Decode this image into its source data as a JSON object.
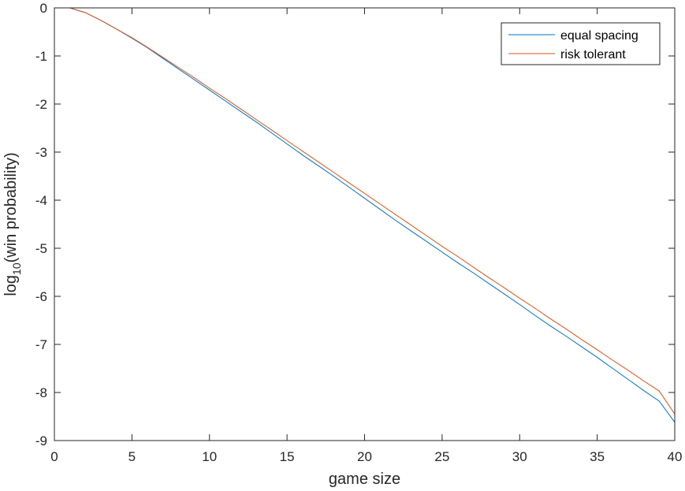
{
  "chart_data": {
    "type": "line",
    "title": "",
    "xlabel": "game size",
    "ylabel_prefix": "log",
    "ylabel_subscript": "10",
    "ylabel_suffix": "(win probability)",
    "xlim": [
      0,
      40
    ],
    "ylim": [
      -9,
      0
    ],
    "xticks": [
      0,
      5,
      10,
      15,
      20,
      25,
      30,
      35,
      40
    ],
    "yticks": [
      0,
      -1,
      -2,
      -3,
      -4,
      -5,
      -6,
      -7,
      -8,
      -9
    ],
    "grid": false,
    "legend_position": "top-right",
    "x": [
      1,
      2,
      3,
      4,
      5,
      6,
      7,
      8,
      9,
      10,
      11,
      12,
      13,
      14,
      15,
      16,
      17,
      18,
      19,
      20,
      21,
      22,
      23,
      24,
      25,
      26,
      27,
      28,
      29,
      30,
      31,
      32,
      33,
      34,
      35,
      36,
      37,
      38,
      39,
      40
    ],
    "series": [
      {
        "name": "equal spacing",
        "color": "#0072BD",
        "values": [
          0,
          -0.1,
          -0.26,
          -0.44,
          -0.63,
          -0.83,
          -1.05,
          -1.27,
          -1.49,
          -1.71,
          -1.93,
          -2.15,
          -2.37,
          -2.6,
          -2.83,
          -3.06,
          -3.28,
          -3.5,
          -3.73,
          -3.96,
          -4.19,
          -4.42,
          -4.64,
          -4.86,
          -5.08,
          -5.3,
          -5.51,
          -5.73,
          -5.95,
          -6.17,
          -6.4,
          -6.62,
          -6.83,
          -7.05,
          -7.27,
          -7.5,
          -7.73,
          -7.96,
          -8.18,
          -8.62
        ]
      },
      {
        "name": "risk tolerant",
        "color": "#D95319",
        "values": [
          0,
          -0.1,
          -0.26,
          -0.44,
          -0.62,
          -0.82,
          -1.03,
          -1.24,
          -1.45,
          -1.67,
          -1.88,
          -2.1,
          -2.32,
          -2.54,
          -2.76,
          -2.98,
          -3.2,
          -3.42,
          -3.64,
          -3.86,
          -4.08,
          -4.3,
          -4.52,
          -4.74,
          -4.96,
          -5.17,
          -5.39,
          -5.61,
          -5.82,
          -6.04,
          -6.25,
          -6.47,
          -6.68,
          -6.9,
          -7.11,
          -7.33,
          -7.54,
          -7.76,
          -7.97,
          -8.45
        ]
      }
    ]
  }
}
